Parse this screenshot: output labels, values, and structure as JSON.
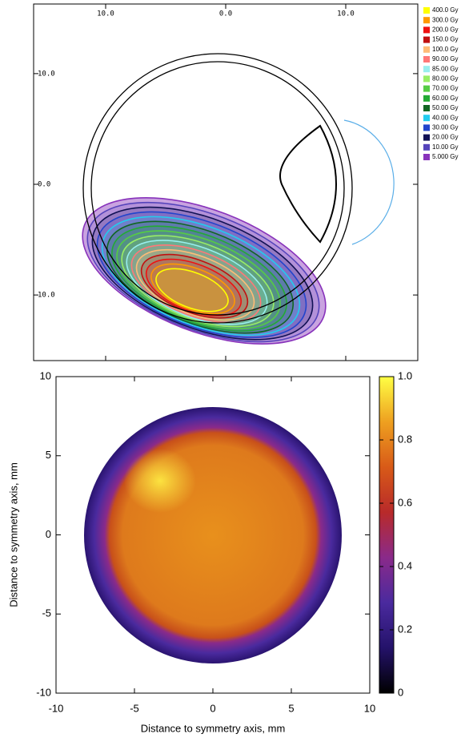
{
  "chart_data": [
    {
      "type": "contour",
      "xlim": [
        -16,
        16
      ],
      "ylim": [
        -16,
        16
      ],
      "xticks": [
        {
          "value": -10,
          "label": "10.0"
        },
        {
          "value": 0,
          "label": "0.0"
        },
        {
          "value": 10,
          "label": "10.0"
        }
      ],
      "yticks": [
        {
          "value": 10,
          "label": "10.0"
        },
        {
          "value": 0,
          "label": "0.0"
        },
        {
          "value": -10,
          "label": "10.0"
        }
      ],
      "series": [
        {
          "name": "400.0 Gy",
          "color": "#ffff00"
        },
        {
          "name": "300.0 Gy",
          "color": "#ff9900"
        },
        {
          "name": "200.0 Gy",
          "color": "#ee1111"
        },
        {
          "name": "150.0 Gy",
          "color": "#c01010"
        },
        {
          "name": "100.0 Gy",
          "color": "#ffbb77"
        },
        {
          "name": "90.00 Gy",
          "color": "#ff7777"
        },
        {
          "name": "85.00 Gy",
          "color": "#99eeee"
        },
        {
          "name": "80.00 Gy",
          "color": "#99ee66"
        },
        {
          "name": "70.00 Gy",
          "color": "#55cc44"
        },
        {
          "name": "60.00 Gy",
          "color": "#22aa33"
        },
        {
          "name": "50.00 Gy",
          "color": "#116622"
        },
        {
          "name": "40.00 Gy",
          "color": "#22ccee"
        },
        {
          "name": "30.00 Gy",
          "color": "#2244cc"
        },
        {
          "name": "20.00 Gy",
          "color": "#111155"
        },
        {
          "name": "10.00 Gy",
          "color": "#5544bb"
        },
        {
          "name": "5.000 Gy",
          "color": "#8833bb"
        }
      ]
    },
    {
      "type": "heatmap",
      "xlabel": "Distance to symmetry axis, mm",
      "ylabel": "Distance to symmetry axis, mm",
      "xlim": [
        -10,
        10
      ],
      "ylim": [
        -10,
        10
      ],
      "xticks": [
        -10,
        -5,
        0,
        5,
        10
      ],
      "yticks": [
        -10,
        -5,
        0,
        5,
        10
      ],
      "clim": [
        0,
        1
      ],
      "cticks": [
        0,
        0.2,
        0.4,
        0.6,
        0.8,
        {
          "value": 1,
          "label": "1.0"
        }
      ],
      "colormap": [
        "#000000",
        "#24126a",
        "#4a2a9e",
        "#8a2a8a",
        "#b82a2a",
        "#d85a18",
        "#eea020",
        "#ffff44"
      ]
    }
  ]
}
